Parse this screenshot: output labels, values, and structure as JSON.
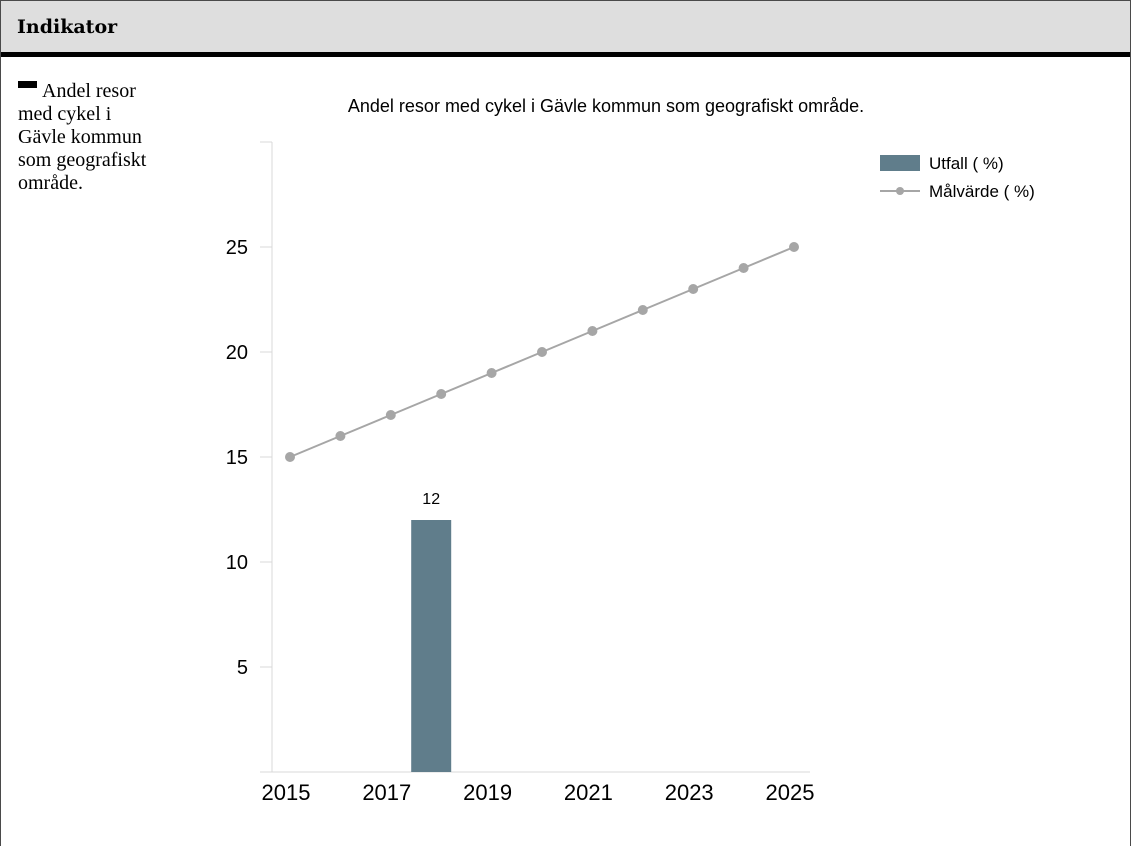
{
  "header": {
    "title": "Indikator"
  },
  "sidebar": {
    "indicator_label": "Andel resor med cykel i Gävle kommun som geografiskt område.",
    "marker_color": "#000000"
  },
  "chart_data": {
    "type": "bar",
    "title": "Andel resor med cykel i Gävle kommun som geografiskt område.",
    "xlabel": "",
    "ylabel": "",
    "x": [
      2015,
      2016,
      2017,
      2018,
      2019,
      2020,
      2021,
      2022,
      2023,
      2024,
      2025
    ],
    "xticks": [
      "2015",
      "2017",
      "2019",
      "2021",
      "2023",
      "2025"
    ],
    "yticks": [
      5,
      10,
      15,
      20,
      25
    ],
    "ylim": [
      0,
      30
    ],
    "legend_position": "top-right",
    "series": [
      {
        "name": "Utfall ( %)",
        "type": "bar",
        "color": "#607d8b",
        "points": [
          {
            "x": 2018,
            "y": 12
          }
        ],
        "data_labels": true
      },
      {
        "name": "Målvärde ( %)",
        "type": "line",
        "color": "#a6a6a6",
        "points": [
          {
            "x": 2015,
            "y": 15
          },
          {
            "x": 2016,
            "y": 16
          },
          {
            "x": 2017,
            "y": 17
          },
          {
            "x": 2018,
            "y": 18
          },
          {
            "x": 2019,
            "y": 19
          },
          {
            "x": 2020,
            "y": 20
          },
          {
            "x": 2021,
            "y": 21
          },
          {
            "x": 2022,
            "y": 22
          },
          {
            "x": 2023,
            "y": 23
          },
          {
            "x": 2024,
            "y": 24
          },
          {
            "x": 2025,
            "y": 25
          }
        ]
      }
    ]
  }
}
